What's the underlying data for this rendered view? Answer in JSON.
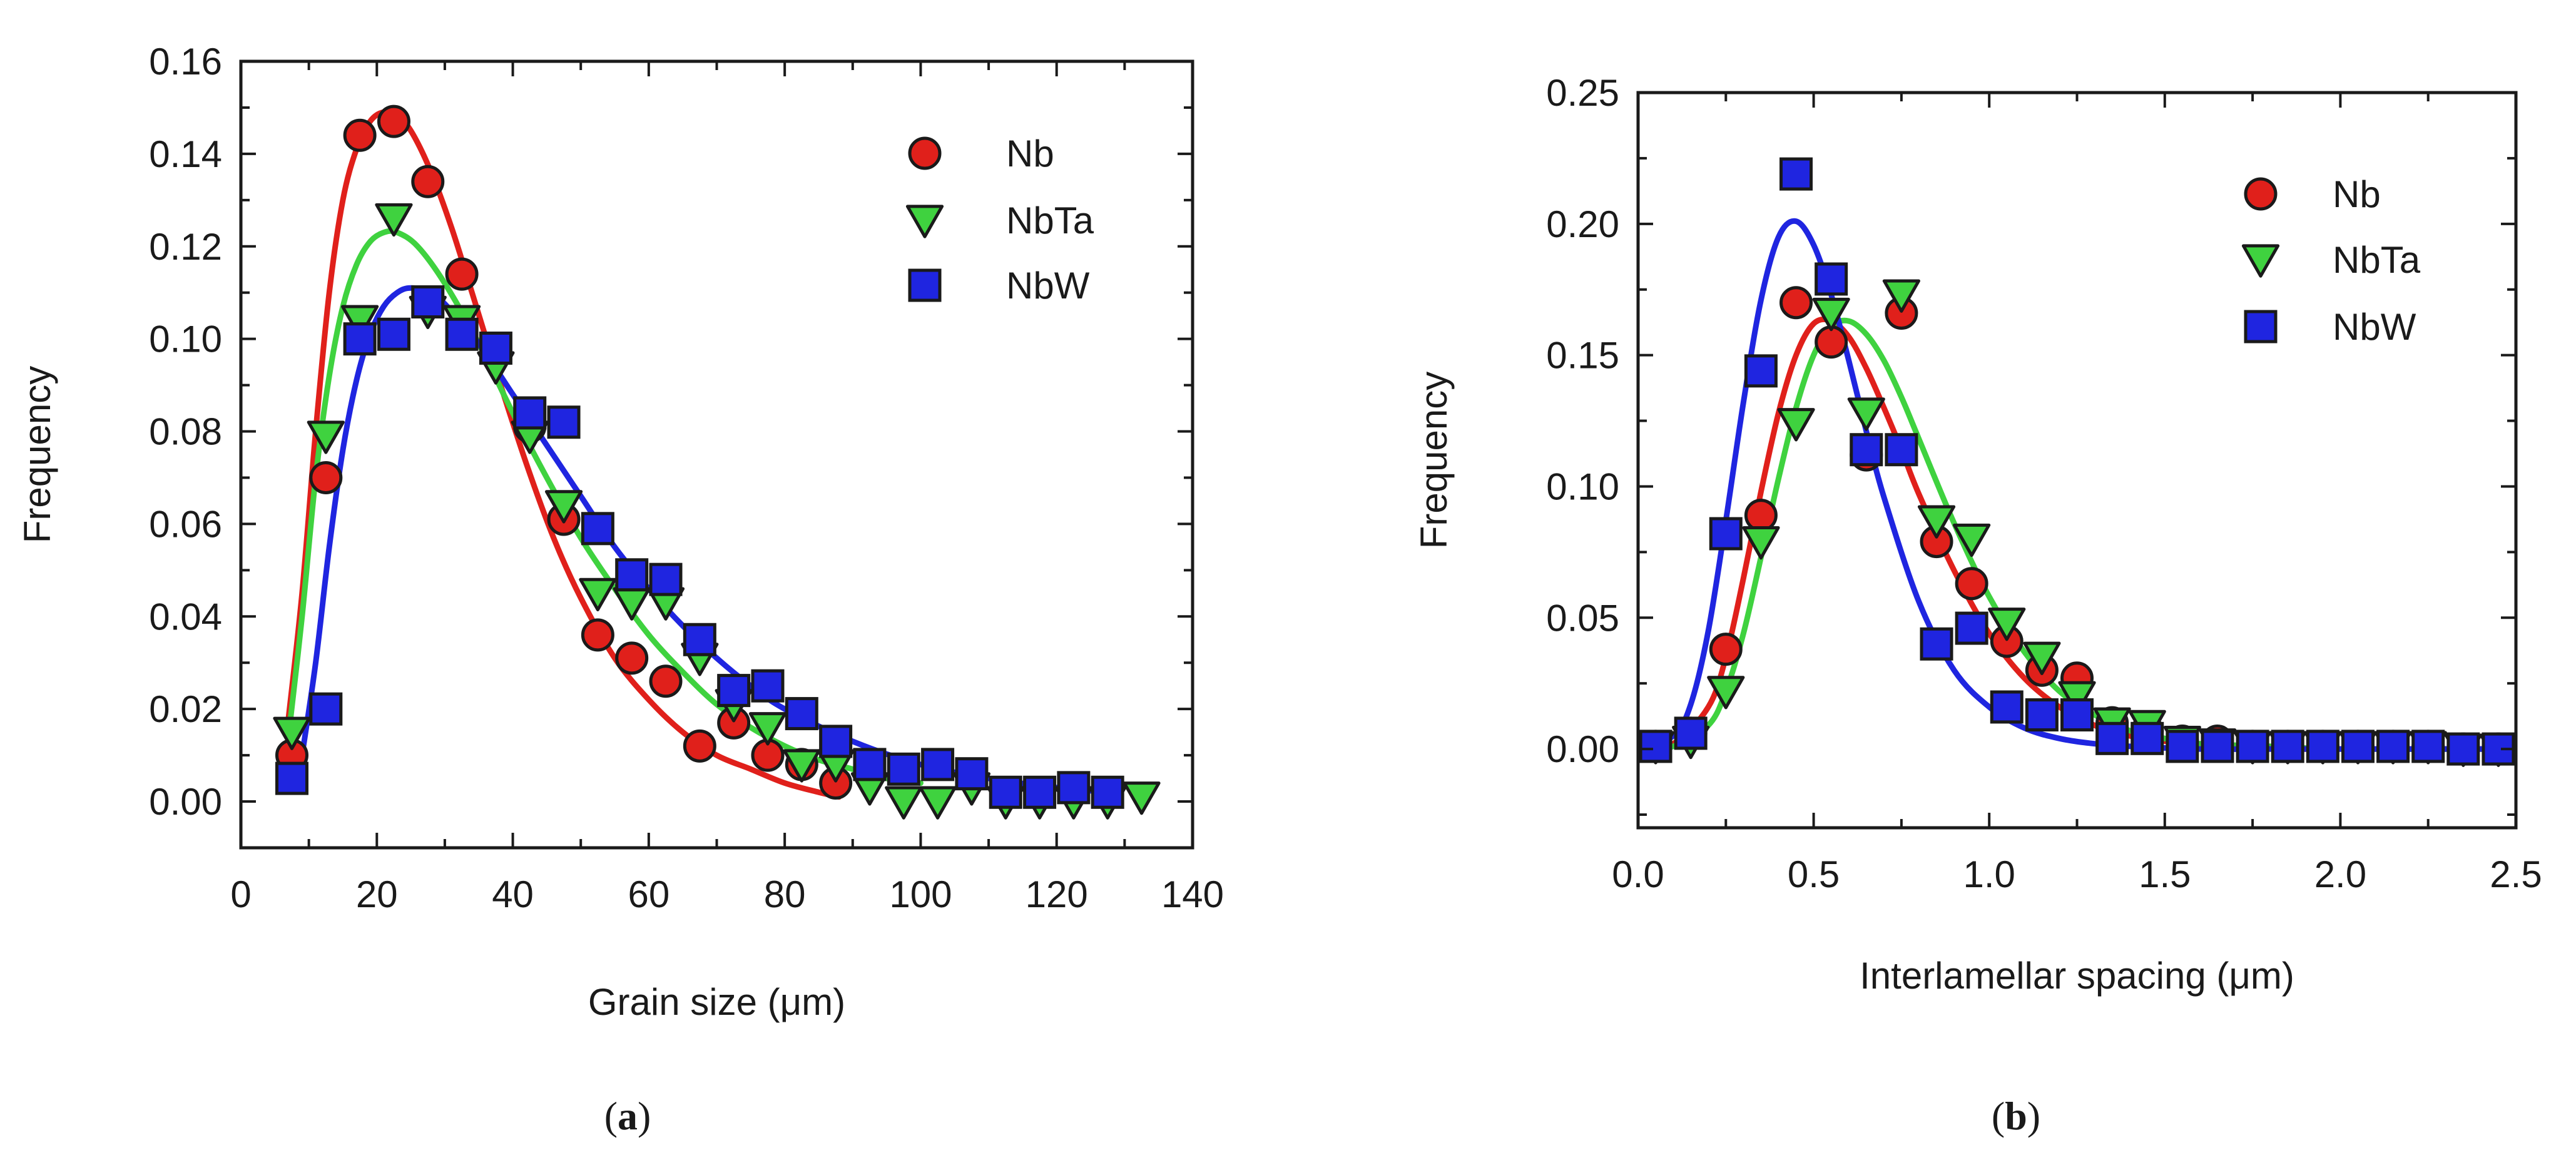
{
  "colors": {
    "Nb": "#e0201b",
    "NbTa": "#3fd23f",
    "NbW": "#1f25e0",
    "axis": "#1a1a1a"
  },
  "chart_data": [
    {
      "type": "scatter",
      "panel_label": "(a)",
      "caption": {
        "open": "(",
        "letter": "a",
        "close": ")"
      },
      "xlabel": "Grain size (μm)",
      "ylabel": "Frequency",
      "xlim": [
        0,
        140
      ],
      "ylim": [
        -0.01,
        0.16
      ],
      "xticks": [
        0,
        20,
        40,
        60,
        80,
        100,
        120,
        140
      ],
      "xtick_labels": [
        "0",
        "20",
        "40",
        "60",
        "80",
        "100",
        "120",
        "140"
      ],
      "yticks": [
        0.0,
        0.02,
        0.04,
        0.06,
        0.08,
        0.1,
        0.12,
        0.14,
        0.16
      ],
      "ytick_labels": [
        "0.00",
        "0.02",
        "0.04",
        "0.06",
        "0.08",
        "0.10",
        "0.12",
        "0.14",
        "0.16"
      ],
      "legend_position": "top-right",
      "series": [
        {
          "name": "Nb",
          "marker": "circle",
          "x": [
            7.5,
            12.5,
            17.5,
            22.5,
            27.5,
            32.5,
            37.5,
            42.5,
            47.5,
            52.5,
            57.5,
            62.5,
            67.5,
            72.5,
            77.5,
            82.5,
            87.5
          ],
          "y": [
            0.01,
            0.07,
            0.144,
            0.147,
            0.134,
            0.114,
            0.097,
            0.081,
            0.061,
            0.036,
            0.031,
            0.026,
            0.012,
            0.017,
            0.01,
            0.008,
            0.004
          ],
          "fit_x": [
            7,
            9,
            11,
            13,
            15,
            17,
            19,
            21,
            23,
            25,
            28,
            31,
            34,
            38,
            42,
            46,
            50,
            55,
            60,
            65,
            70,
            75,
            80,
            85,
            88
          ],
          "fit_y": [
            0.018,
            0.045,
            0.08,
            0.11,
            0.13,
            0.141,
            0.147,
            0.149,
            0.148,
            0.145,
            0.136,
            0.124,
            0.11,
            0.091,
            0.073,
            0.057,
            0.044,
            0.031,
            0.022,
            0.015,
            0.01,
            0.007,
            0.004,
            0.002,
            0.001
          ]
        },
        {
          "name": "NbTa",
          "marker": "triangle-down",
          "x": [
            7.5,
            12.5,
            17.5,
            22.5,
            27.5,
            32.5,
            37.5,
            42.5,
            47.5,
            52.5,
            57.5,
            62.5,
            67.5,
            72.5,
            77.5,
            82.5,
            87.5,
            92.5,
            97.5,
            102.5,
            107.5,
            112.5,
            117.5,
            122.5,
            127.5,
            132.5
          ],
          "y": [
            0.015,
            0.079,
            0.104,
            0.126,
            0.106,
            0.104,
            0.094,
            0.079,
            0.064,
            0.045,
            0.043,
            0.043,
            0.031,
            0.021,
            0.016,
            0.008,
            0.008,
            0.003,
            0.0,
            0.0,
            0.003,
            0.0,
            0.0,
            0.0,
            0.0,
            0.001
          ],
          "fit_x": [
            7,
            9,
            11,
            13,
            15,
            17,
            19,
            21,
            23,
            26,
            30,
            35,
            40,
            45,
            50,
            55,
            60,
            65,
            70,
            75,
            80,
            85,
            90,
            95,
            100
          ],
          "fit_y": [
            0.014,
            0.04,
            0.07,
            0.092,
            0.107,
            0.116,
            0.121,
            0.123,
            0.123,
            0.12,
            0.112,
            0.099,
            0.084,
            0.07,
            0.057,
            0.046,
            0.036,
            0.028,
            0.021,
            0.016,
            0.012,
            0.009,
            0.007,
            0.005,
            0.004
          ]
        },
        {
          "name": "NbW",
          "marker": "square",
          "x": [
            7.5,
            12.5,
            17.5,
            22.5,
            27.5,
            32.5,
            37.5,
            42.5,
            47.5,
            52.5,
            57.5,
            62.5,
            67.5,
            72.5,
            77.5,
            82.5,
            87.5,
            92.5,
            97.5,
            102.5,
            107.5,
            112.5,
            117.5,
            122.5,
            127.5
          ],
          "y": [
            0.005,
            0.02,
            0.1,
            0.101,
            0.108,
            0.101,
            0.098,
            0.084,
            0.082,
            0.059,
            0.049,
            0.048,
            0.035,
            0.024,
            0.025,
            0.019,
            0.013,
            0.008,
            0.007,
            0.008,
            0.006,
            0.002,
            0.002,
            0.003,
            0.002
          ],
          "fit_x": [
            9,
            11,
            13,
            15,
            17,
            19,
            21,
            23,
            25,
            28,
            31,
            35,
            40,
            45,
            50,
            55,
            60,
            65,
            70,
            75,
            80,
            90,
            100,
            110,
            120,
            128
          ],
          "fit_y": [
            0.01,
            0.03,
            0.055,
            0.076,
            0.091,
            0.101,
            0.107,
            0.11,
            0.111,
            0.11,
            0.106,
            0.099,
            0.088,
            0.077,
            0.066,
            0.055,
            0.046,
            0.038,
            0.031,
            0.025,
            0.02,
            0.013,
            0.008,
            0.005,
            0.003,
            0.002
          ]
        }
      ]
    },
    {
      "type": "scatter",
      "panel_label": "(b)",
      "caption": {
        "open": "(",
        "letter": "b",
        "close": ")"
      },
      "xlabel": "Interlamellar spacing (μm)",
      "ylabel": "Frequency",
      "xlim": [
        0,
        2.5
      ],
      "ylim": [
        -0.03,
        0.25
      ],
      "xticks": [
        0.0,
        0.5,
        1.0,
        1.5,
        2.0,
        2.5
      ],
      "xtick_labels": [
        "0.0",
        "0.5",
        "1.0",
        "1.5",
        "2.0",
        "2.5"
      ],
      "yticks": [
        0.0,
        0.05,
        0.1,
        0.15,
        0.2,
        0.25
      ],
      "ytick_labels": [
        "0.00",
        "0.05",
        "0.10",
        "0.15",
        "0.20",
        "0.25"
      ],
      "legend_position": "top-right",
      "series": [
        {
          "name": "Nb",
          "marker": "circle",
          "x": [
            0.05,
            0.15,
            0.25,
            0.35,
            0.45,
            0.55,
            0.65,
            0.75,
            0.85,
            0.95,
            1.05,
            1.15,
            1.25,
            1.35,
            1.45,
            1.55,
            1.65,
            1.75,
            1.85,
            1.95,
            2.05,
            2.15,
            2.25,
            2.35,
            2.45
          ],
          "y": [
            0.001,
            0.006,
            0.038,
            0.089,
            0.17,
            0.155,
            0.112,
            0.166,
            0.079,
            0.063,
            0.041,
            0.03,
            0.027,
            0.01,
            0.007,
            0.003,
            0.003,
            0.001,
            0.001,
            0.001,
            0.001,
            0.001,
            0.001,
            0.0,
            0.0
          ],
          "fit_x": [
            0.0,
            0.1,
            0.2,
            0.25,
            0.3,
            0.35,
            0.4,
            0.45,
            0.5,
            0.55,
            0.6,
            0.65,
            0.7,
            0.75,
            0.8,
            0.9,
            1.0,
            1.1,
            1.2,
            1.3,
            1.4,
            1.5,
            1.6,
            1.8,
            2.0,
            2.5
          ],
          "fit_y": [
            0.0,
            0.002,
            0.016,
            0.035,
            0.065,
            0.098,
            0.128,
            0.15,
            0.162,
            0.163,
            0.157,
            0.145,
            0.13,
            0.114,
            0.097,
            0.068,
            0.044,
            0.027,
            0.016,
            0.009,
            0.005,
            0.003,
            0.001,
            0.0,
            0.0,
            0.0
          ]
        },
        {
          "name": "NbTa",
          "marker": "triangle-down",
          "x": [
            0.05,
            0.15,
            0.25,
            0.35,
            0.45,
            0.55,
            0.65,
            0.75,
            0.85,
            0.95,
            1.05,
            1.15,
            1.25,
            1.35,
            1.45,
            1.55,
            1.65,
            1.75,
            1.85,
            1.95,
            2.05,
            2.15,
            2.25,
            2.35,
            2.45
          ],
          "y": [
            0.001,
            0.003,
            0.022,
            0.079,
            0.124,
            0.166,
            0.128,
            0.173,
            0.087,
            0.08,
            0.048,
            0.035,
            0.02,
            0.01,
            0.009,
            0.003,
            0.002,
            0.001,
            0.001,
            0.001,
            0.001,
            0.001,
            0.001,
            0.0,
            0.0
          ],
          "fit_x": [
            0.0,
            0.1,
            0.2,
            0.25,
            0.3,
            0.35,
            0.4,
            0.45,
            0.5,
            0.55,
            0.6,
            0.65,
            0.7,
            0.75,
            0.8,
            0.9,
            1.0,
            1.1,
            1.2,
            1.3,
            1.4,
            1.5,
            1.6,
            1.8,
            2.0,
            2.5
          ],
          "fit_y": [
            0.0,
            0.001,
            0.009,
            0.022,
            0.044,
            0.073,
            0.103,
            0.13,
            0.15,
            0.161,
            0.163,
            0.158,
            0.148,
            0.134,
            0.118,
            0.086,
            0.058,
            0.037,
            0.022,
            0.013,
            0.007,
            0.004,
            0.002,
            0.001,
            0.0,
            0.0
          ]
        },
        {
          "name": "NbW",
          "marker": "square",
          "x": [
            0.05,
            0.15,
            0.25,
            0.35,
            0.45,
            0.55,
            0.65,
            0.75,
            0.85,
            0.95,
            1.05,
            1.15,
            1.25,
            1.35,
            1.45,
            1.55,
            1.65,
            1.75,
            1.85,
            1.95,
            2.05,
            2.15,
            2.25,
            2.35,
            2.45
          ],
          "y": [
            0.001,
            0.006,
            0.082,
            0.144,
            0.219,
            0.179,
            0.114,
            0.114,
            0.04,
            0.046,
            0.016,
            0.013,
            0.013,
            0.004,
            0.004,
            0.001,
            0.001,
            0.001,
            0.001,
            0.001,
            0.001,
            0.001,
            0.001,
            0.0,
            0.0
          ],
          "fit_x": [
            0.0,
            0.1,
            0.15,
            0.2,
            0.25,
            0.3,
            0.35,
            0.4,
            0.45,
            0.5,
            0.55,
            0.6,
            0.65,
            0.7,
            0.8,
            0.9,
            1.0,
            1.1,
            1.2,
            1.3,
            1.4,
            1.6,
            1.8,
            2.0,
            2.5
          ],
          "fit_y": [
            0.0,
            0.005,
            0.017,
            0.045,
            0.087,
            0.132,
            0.171,
            0.195,
            0.201,
            0.192,
            0.173,
            0.148,
            0.121,
            0.096,
            0.056,
            0.03,
            0.016,
            0.008,
            0.004,
            0.002,
            0.001,
            0.0,
            0.0,
            0.0,
            0.0
          ]
        }
      ]
    }
  ]
}
